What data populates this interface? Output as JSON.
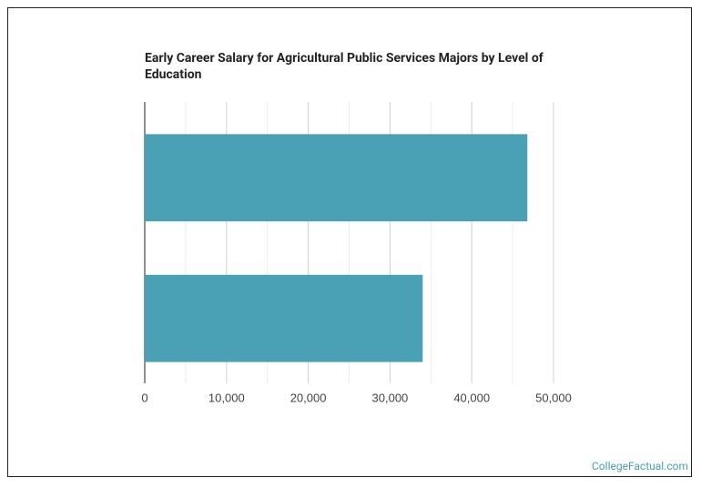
{
  "chart_data": {
    "type": "bar",
    "orientation": "horizontal",
    "title": "Early Career Salary for Agricultural Public Services Majors by Level of Education",
    "categories": [
      null,
      null
    ],
    "values": [
      46800,
      34000
    ],
    "color": "#4aa0b5",
    "xlim": [
      0,
      50000
    ],
    "xticks": [
      0,
      {
        "value": 10000,
        "label": "10,000"
      },
      {
        "value": 20000,
        "label": "20,000"
      },
      {
        "value": 30000,
        "label": "30,000"
      },
      {
        "value": 40000,
        "label": "40,000"
      },
      {
        "value": 50000,
        "label": "50,000"
      }
    ],
    "xminor": [
      5000,
      15000,
      25000,
      35000,
      45000
    ],
    "grid": true,
    "source": "CollegeFactual.com"
  }
}
